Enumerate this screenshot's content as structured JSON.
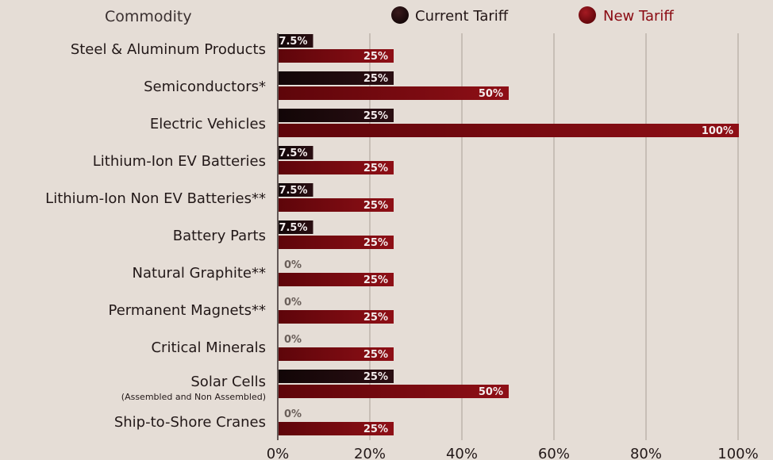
{
  "chart_data": {
    "type": "bar",
    "orientation": "horizontal",
    "column_header": "Commodity",
    "categories": [
      "Steel & Aluminum Products",
      "Semiconductors*",
      "Electric Vehicles",
      "Lithium-Ion EV Batteries",
      "Lithium-Ion Non EV Batteries**",
      "Battery Parts",
      "Natural Graphite**",
      "Permanent Magnets**",
      "Critical Minerals",
      "Solar Cells",
      "Ship-to-Shore Cranes"
    ],
    "category_notes": [
      "",
      "",
      "",
      "",
      "",
      "",
      "",
      "",
      "",
      "(Assembled and Non Assembled)",
      ""
    ],
    "series": [
      {
        "name": "Current Tariff",
        "color": "#1e0a0c",
        "values": [
          7.5,
          25,
          25,
          7.5,
          7.5,
          7.5,
          0,
          0,
          0,
          25,
          0
        ],
        "labels": [
          "7.5%",
          "25%",
          "25%",
          "7.5%",
          "7.5%",
          "7.5%",
          "0%",
          "0%",
          "0%",
          "25%",
          "0%"
        ]
      },
      {
        "name": "New Tariff",
        "color": "#7a0a10",
        "values": [
          25,
          50,
          100,
          25,
          25,
          25,
          25,
          25,
          25,
          50,
          25
        ],
        "labels": [
          "25%",
          "50%",
          "100%",
          "25%",
          "25%",
          "25%",
          "25%",
          "25%",
          "25%",
          "50%",
          "25%"
        ]
      }
    ],
    "xlim": [
      0,
      100
    ],
    "x_ticks": [
      0,
      20,
      40,
      60,
      80,
      100
    ],
    "x_tick_labels": [
      "0%",
      "20%",
      "40%",
      "60%",
      "80%",
      "100%"
    ],
    "grid": "vertical",
    "legend_position": "top"
  }
}
